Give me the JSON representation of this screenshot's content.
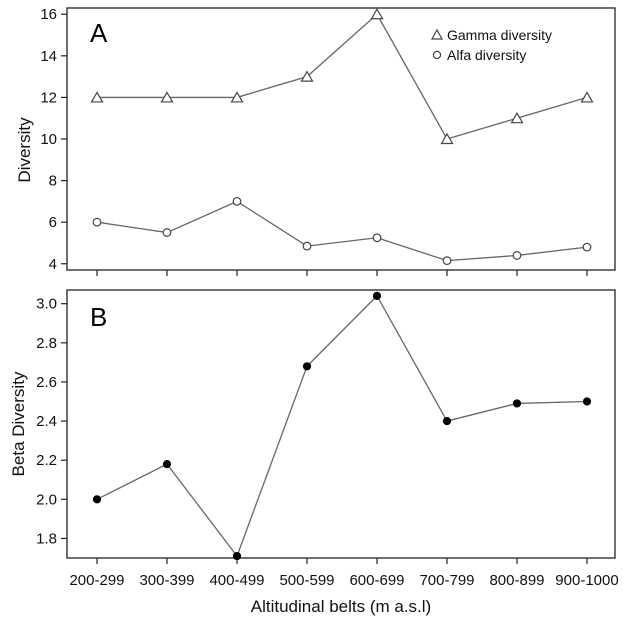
{
  "chart_data": [
    {
      "type": "line",
      "panel_label": "A",
      "categories": [
        "200-299",
        "300-399",
        "400-499",
        "500-599",
        "600-699",
        "700-799",
        "800-899",
        "900-1000"
      ],
      "ylabel": "Diversity",
      "ylim": [
        3.7,
        16.3
      ],
      "yticks": [
        4,
        6,
        8,
        10,
        12,
        14,
        16
      ],
      "series": [
        {
          "name": "Gamma diversity",
          "marker": "open-triangle",
          "values": [
            12,
            12,
            12,
            13,
            16,
            10,
            11,
            12
          ]
        },
        {
          "name": "Alfa diversity",
          "marker": "open-circle",
          "values": [
            6.0,
            5.5,
            7.0,
            4.85,
            5.25,
            4.15,
            4.4,
            4.8
          ]
        }
      ],
      "legend": "top-right",
      "grid": false
    },
    {
      "type": "line",
      "panel_label": "B",
      "categories": [
        "200-299",
        "300-399",
        "400-499",
        "500-599",
        "600-699",
        "700-799",
        "800-899",
        "900-1000"
      ],
      "ylabel": "Beta Diversity",
      "xlabel": "Altitudinal belts (m a.s.l)",
      "ylim": [
        1.7,
        3.07
      ],
      "yticks": [
        1.8,
        2.0,
        2.2,
        2.4,
        2.6,
        2.8,
        3.0
      ],
      "ytick_labels": [
        "1.8",
        "2.0",
        "2.2",
        "2.4",
        "2.6",
        "2.8",
        "3.0"
      ],
      "series": [
        {
          "marker": "filled-circle",
          "values": [
            2.0,
            2.18,
            1.71,
            2.68,
            3.04,
            2.4,
            2.49,
            2.5
          ]
        }
      ],
      "grid": false
    }
  ],
  "colors": {
    "line": "#666666",
    "marker_fill_open": "#ffffff",
    "marker_fill_solid": "#000000",
    "frame": "#222222"
  }
}
